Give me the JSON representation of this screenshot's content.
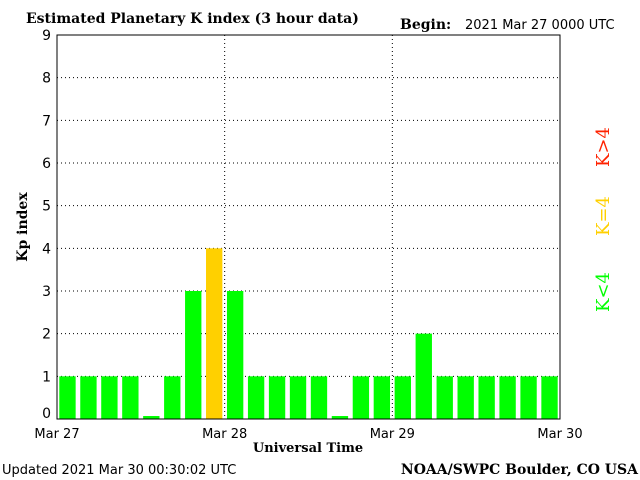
{
  "header": {
    "title": "Estimated Planetary K index (3 hour data)",
    "begin_label": "Begin:",
    "begin_value": "2021 Mar 27 0000 UTC"
  },
  "footer": {
    "updated": "Updated 2021 Mar 30 00:30:02 UTC",
    "source": "NOAA/SWPC Boulder, CO USA"
  },
  "legend": {
    "high": {
      "label": "K>4",
      "color": "#ff2200"
    },
    "mid": {
      "label": "K=4",
      "color": "#ffd000"
    },
    "low": {
      "label": "K<4",
      "color": "#00ff00"
    }
  },
  "chart_data": {
    "type": "bar",
    "title": "Estimated Planetary K index (3 hour data)",
    "xlabel": "Universal Time",
    "ylabel": "Kp index",
    "ylim": [
      0,
      9
    ],
    "yticks": [
      "0",
      "1",
      "2",
      "3",
      "4",
      "5",
      "6",
      "7",
      "8",
      "9"
    ],
    "xticks": [
      "Mar 27",
      "Mar 28",
      "Mar 29",
      "Mar 30"
    ],
    "interval_hours": 3,
    "grid": "dotted",
    "values": [
      1,
      1,
      1,
      1,
      0.07,
      1,
      3,
      4,
      3,
      1,
      1,
      1,
      1,
      0.07,
      1,
      1,
      1,
      2,
      1,
      1,
      1,
      1,
      1,
      1
    ],
    "colors": {
      "low": "#00ff00",
      "mid": "#ffd000",
      "high": "#ff2200"
    }
  }
}
